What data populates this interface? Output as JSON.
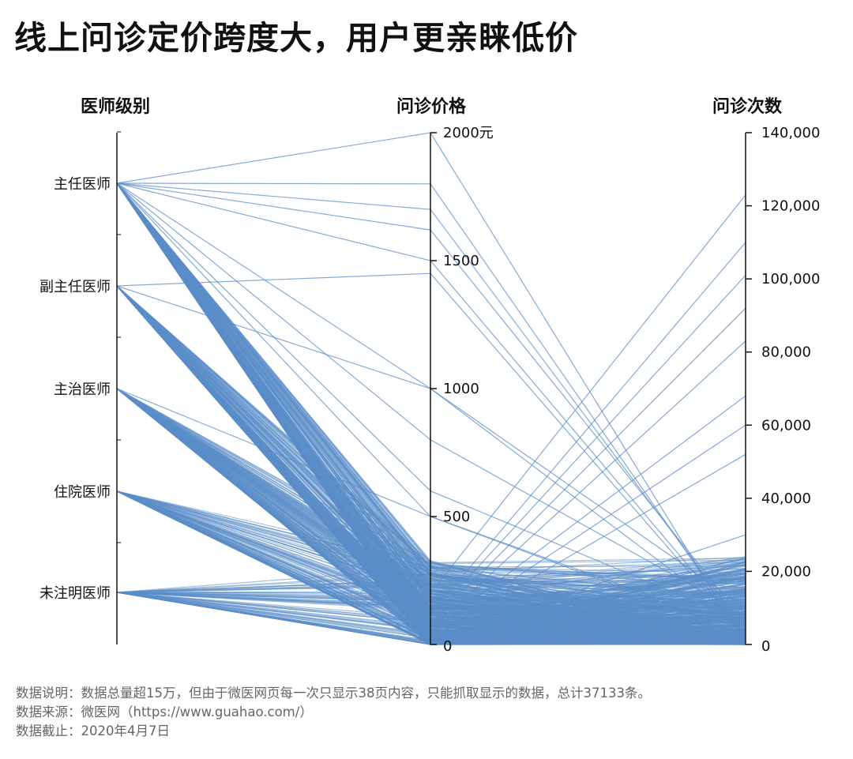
{
  "title": "线上问诊定价跨度大，用户更亲睐低价",
  "notes": [
    "数据说明：数据总量超15万，但由于微医网页每一次只显示38页内容，只能抓取显示的数据，总计37133条。",
    "数据来源：微医网（https://www.guahao.com/）",
    "数据截止：2020年4月7日"
  ],
  "colors": {
    "line": "#5b8ec8",
    "axis": "#111111",
    "text": "#111111"
  },
  "chart_data": {
    "type": "parallel_coordinates",
    "axes": [
      {
        "name": "医师级别",
        "kind": "categorical",
        "categories": [
          "主任医师",
          "副主任医师",
          "主治医师",
          "住院医师",
          "未注明医师"
        ]
      },
      {
        "name": "问诊价格",
        "kind": "numeric",
        "range": [
          0,
          2000
        ],
        "unit": "元",
        "ticks": [
          0,
          500,
          1000,
          1500,
          2000
        ],
        "tick_labels": [
          "0",
          "500",
          "1000",
          "1500",
          "2000元"
        ]
      },
      {
        "name": "问诊次数",
        "kind": "numeric",
        "range": [
          0,
          140000
        ],
        "ticks": [
          0,
          20000,
          40000,
          60000,
          80000,
          100000,
          120000,
          140000
        ],
        "tick_labels": [
          "0",
          "20,000",
          "40,000",
          "60,000",
          "80,000",
          "100,000",
          "120,000",
          "140,000"
        ]
      }
    ],
    "notable_lines": [
      {
        "level": "主任医师",
        "price": 2000,
        "consultations": 0
      },
      {
        "level": "主任医师",
        "price": 1800,
        "consultations": 2000
      },
      {
        "level": "主任医师",
        "price": 1700,
        "consultations": 4000
      },
      {
        "level": "主任医师",
        "price": 1620,
        "consultations": 6000
      },
      {
        "level": "主任医师",
        "price": 1500,
        "consultations": 3000
      },
      {
        "level": "副主任医师",
        "price": 1450,
        "consultations": 2000
      },
      {
        "level": "主任医师",
        "price": 1000,
        "consultations": 10000
      },
      {
        "level": "副主任医师",
        "price": 1000,
        "consultations": 5000
      },
      {
        "level": "主任医师",
        "price": 800,
        "consultations": 8000
      },
      {
        "level": "主任医师",
        "price": 600,
        "consultations": 6000
      },
      {
        "level": "主任医师",
        "price": 500,
        "consultations": 4000
      },
      {
        "level": "主治医师",
        "price": 500,
        "consultations": 3000
      },
      {
        "level": "主任医师",
        "price": 200,
        "consultations": 123000
      },
      {
        "level": "主任医师",
        "price": 120,
        "consultations": 110000
      },
      {
        "level": "副主任医师",
        "price": 100,
        "consultations": 101000
      },
      {
        "level": "主任医师",
        "price": 80,
        "consultations": 92000
      },
      {
        "level": "副主任医师",
        "price": 60,
        "consultations": 83000
      },
      {
        "level": "主任医师",
        "price": 50,
        "consultations": 68000
      },
      {
        "level": "主治医师",
        "price": 40,
        "consultations": 60000
      },
      {
        "level": "副主任医师",
        "price": 30,
        "consultations": 52000
      },
      {
        "level": "住院医师",
        "price": 20,
        "consultations": 30000
      },
      {
        "level": "未注明医师",
        "price": 250,
        "consultations": 15000
      },
      {
        "level": "未注明医师",
        "price": 200,
        "consultations": 8000
      },
      {
        "level": "住院医师",
        "price": 150,
        "consultations": 10000
      }
    ],
    "bulk_pattern": "数万条线集中于 问诊价格 0–300元 与 问诊次数 0–20,000 区间"
  }
}
